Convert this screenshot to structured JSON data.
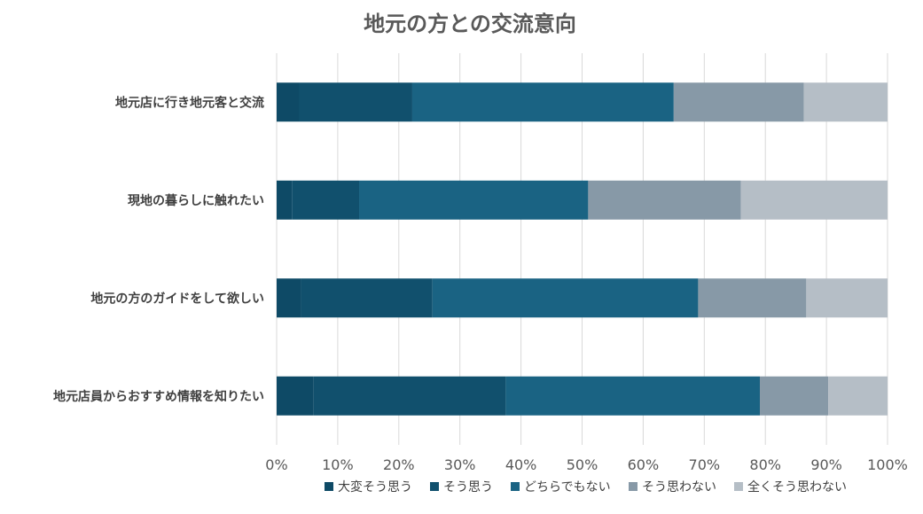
{
  "chart_data": {
    "type": "bar",
    "orientation": "horizontal",
    "stacked": "percent",
    "title": "地元の方との交流意向",
    "categories": [
      "地元店に行き地元客と交流",
      "現地の暮らしに触れたい",
      "地元の方のガイドをして欲しい",
      "地元店員からおすすめ情報を知りたい"
    ],
    "series": [
      {
        "name": "大変そう思う",
        "color": "#0e4a66",
        "values": [
          3.7,
          2.5,
          4.0,
          6.0
        ]
      },
      {
        "name": "そう思う",
        "color": "#11506d",
        "values": [
          18.5,
          11.0,
          21.5,
          31.5
        ]
      },
      {
        "name": "どちらでもない",
        "color": "#1a6383",
        "values": [
          42.8,
          37.5,
          43.5,
          41.6
        ]
      },
      {
        "name": "そう思わない",
        "color": "#8799a7",
        "values": [
          21.3,
          25.0,
          17.7,
          11.2
        ]
      },
      {
        "name": "全くそう思わない",
        "color": "#b5bec6",
        "values": [
          13.7,
          24.0,
          13.3,
          9.7
        ]
      }
    ],
    "xlim": [
      0,
      100
    ],
    "x_ticks": [
      "0%",
      "10%",
      "20%",
      "30%",
      "40%",
      "50%",
      "60%",
      "70%",
      "80%",
      "90%",
      "100%"
    ],
    "grid": true,
    "legend_position": "bottom"
  }
}
